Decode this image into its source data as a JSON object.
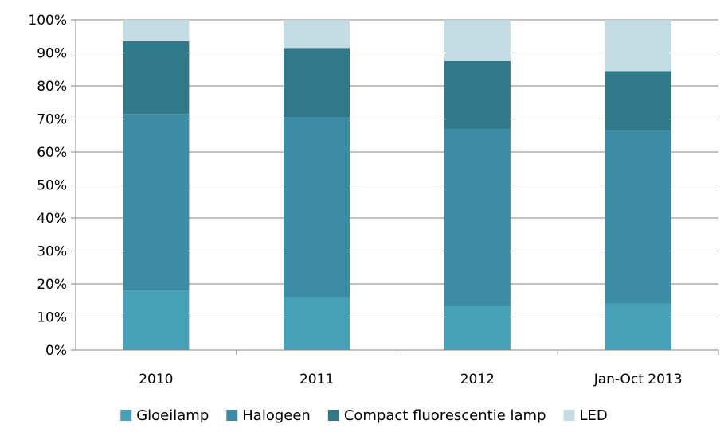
{
  "chart_data": {
    "type": "bar",
    "stacked": true,
    "percent_stacked": true,
    "categories": [
      "2010",
      "2011",
      "2012",
      "Jan-Oct 2013"
    ],
    "series": [
      {
        "name": "Gloeilamp",
        "color": "#46A0B8",
        "values": [
          18,
          16,
          13.5,
          14
        ]
      },
      {
        "name": "Halogeen",
        "color": "#3B8CA4",
        "values": [
          53.5,
          54.5,
          53.5,
          52.5
        ]
      },
      {
        "name": "Compact fluorescentie lamp",
        "color": "#317889",
        "values": [
          22,
          21,
          20.5,
          18
        ]
      },
      {
        "name": "LED",
        "color": "#C3DCE4",
        "values": [
          6.5,
          8.5,
          12.5,
          15.5
        ]
      }
    ],
    "ylim": [
      0,
      100
    ],
    "yticks": [
      "0%",
      "10%",
      "20%",
      "30%",
      "40%",
      "50%",
      "60%",
      "70%",
      "80%",
      "90%",
      "100%"
    ],
    "grid": true,
    "legend": "bottom"
  }
}
